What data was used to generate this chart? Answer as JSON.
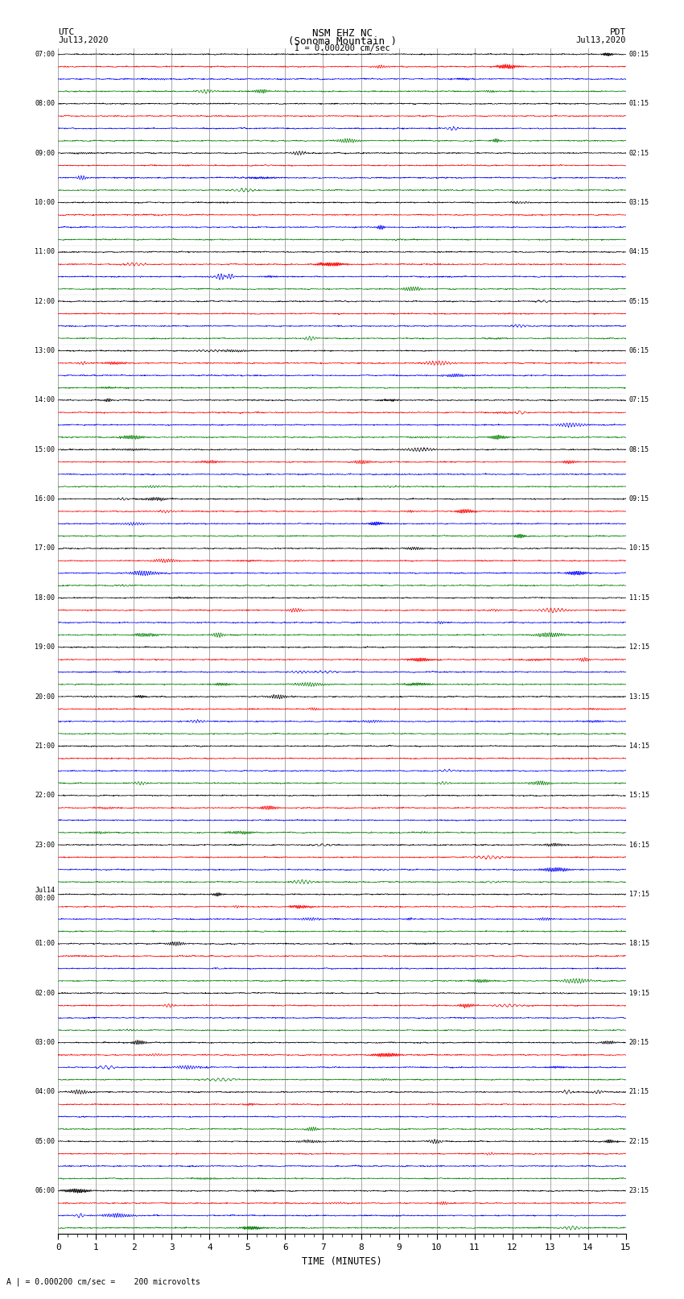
{
  "title_line1": "NSM EHZ NC",
  "title_line2": "(Sonoma Mountain )",
  "scale_text": "I = 0.000200 cm/sec",
  "left_label": "UTC",
  "right_label": "PDT",
  "date_left": "Jul13,2020",
  "date_right": "Jul13,2020",
  "bottom_label": "TIME (MINUTES)",
  "bottom_note": "A | = 0.000200 cm/sec =    200 microvolts",
  "left_times": [
    "07:00",
    "08:00",
    "09:00",
    "10:00",
    "11:00",
    "12:00",
    "13:00",
    "14:00",
    "15:00",
    "16:00",
    "17:00",
    "18:00",
    "19:00",
    "20:00",
    "21:00",
    "22:00",
    "23:00",
    "Jul14\n00:00",
    "01:00",
    "02:00",
    "03:00",
    "04:00",
    "05:00",
    "06:00"
  ],
  "right_times": [
    "00:15",
    "01:15",
    "02:15",
    "03:15",
    "04:15",
    "05:15",
    "06:15",
    "07:15",
    "08:15",
    "09:15",
    "10:15",
    "11:15",
    "12:15",
    "13:15",
    "14:15",
    "15:15",
    "16:15",
    "17:15",
    "18:15",
    "19:15",
    "20:15",
    "21:15",
    "22:15",
    "23:15"
  ],
  "num_groups": 24,
  "traces_per_group": 4,
  "colors": [
    "black",
    "red",
    "blue",
    "green"
  ],
  "x_min": 0,
  "x_max": 15,
  "x_ticks": [
    0,
    1,
    2,
    3,
    4,
    5,
    6,
    7,
    8,
    9,
    10,
    11,
    12,
    13,
    14,
    15
  ],
  "background_color": "white",
  "amplitude_scale": 0.06,
  "noise_scale": 0.025
}
